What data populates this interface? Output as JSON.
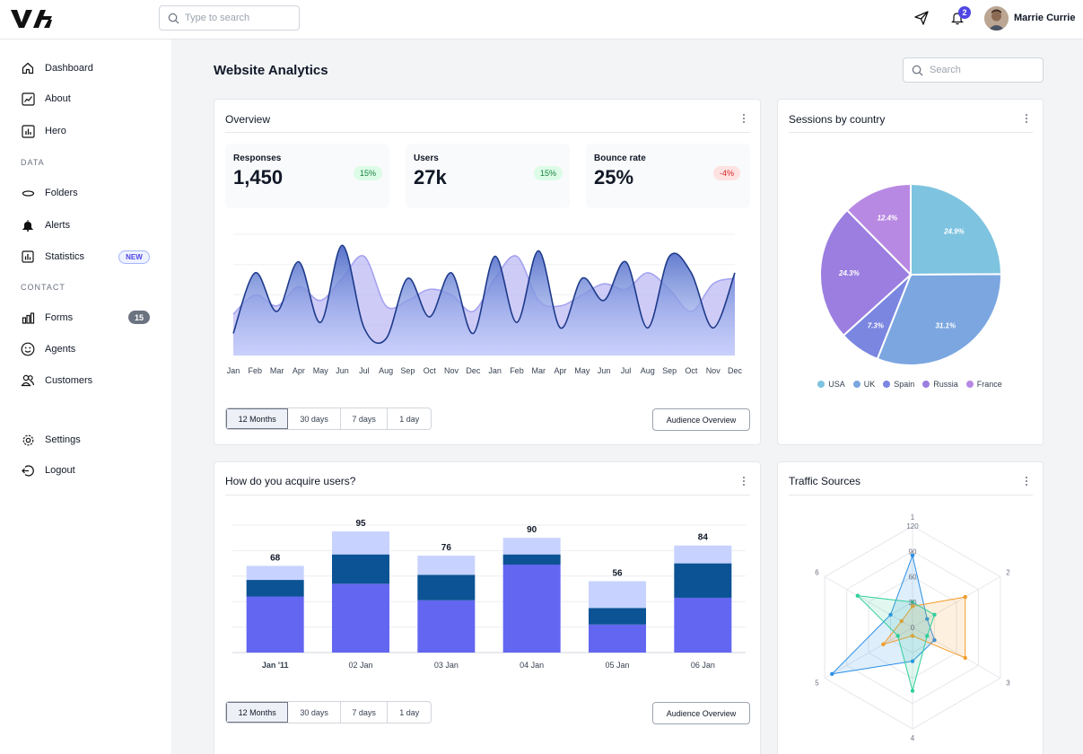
{
  "top_bar": {
    "search_placeholder": "Type to search",
    "notification_count": "2",
    "user_name": "Marrie Currie"
  },
  "sidebar": {
    "items": [
      {
        "label": "Dashboard",
        "icon": "home-icon"
      },
      {
        "label": "About",
        "icon": "trend-chart-icon"
      },
      {
        "label": "Hero",
        "icon": "bar-chart-icon"
      },
      {
        "label": "Folders",
        "icon": "folder-icon"
      },
      {
        "label": "Alerts",
        "icon": "bell-icon"
      },
      {
        "label": "Statistics",
        "icon": "stats-icon",
        "badge": "NEW"
      },
      {
        "label": "Forms",
        "icon": "forms-icon",
        "badge": "15"
      },
      {
        "label": "Agents",
        "icon": "smiley-icon"
      },
      {
        "label": "Customers",
        "icon": "users-icon"
      },
      {
        "label": "Settings",
        "icon": "gear-icon"
      },
      {
        "label": "Logout",
        "icon": "logout-icon"
      }
    ],
    "sections": {
      "data": "DATA",
      "contact": "CONTACT"
    }
  },
  "main": {
    "title": "Website Analytics",
    "search_placeholder": "Search"
  },
  "overview": {
    "title": "Overview",
    "stats": [
      {
        "label": "Responses",
        "value": "1,450",
        "change": "15%",
        "trend": "up"
      },
      {
        "label": "Users",
        "value": "27k",
        "change": "15%",
        "trend": "up"
      },
      {
        "label": "Bounce rate",
        "value": "25%",
        "change": "-4%",
        "trend": "down"
      }
    ],
    "ranges": [
      "12 Months",
      "30 days",
      "7 days",
      "1 day"
    ],
    "active_range": "12 Months",
    "button": "Audience Overview"
  },
  "sessions": {
    "title": "Sessions by country"
  },
  "acquire": {
    "title": "How do you acquire users?",
    "ranges": [
      "12 Months",
      "30 days",
      "7 days",
      "1 day"
    ],
    "active_range": "12 Months",
    "button": "Audience Overview"
  },
  "traffic": {
    "title": "Traffic Sources"
  },
  "colors": {
    "accent": "#4f46e5",
    "bar_primary": "#6366f1",
    "bar_secondary": "#0b5394",
    "bar_tertiary": "#c7d2fe",
    "area_light": "#c4b5fd",
    "area_dark": "#1e3a8a"
  },
  "chart_data": [
    {
      "type": "area",
      "x": [
        "Jan",
        "Feb",
        "Mar",
        "Apr",
        "May",
        "Jun",
        "Jul",
        "Aug",
        "Sep",
        "Oct",
        "Nov",
        "Dec",
        "Jan",
        "Feb",
        "Mar",
        "Apr",
        "May",
        "Jun",
        "Jul",
        "Aug",
        "Sep",
        "Oct",
        "Nov",
        "Dec"
      ],
      "series": [
        {
          "values": [
            15,
            22,
            18,
            25,
            20,
            28,
            36,
            18,
            20,
            24,
            22,
            16,
            28,
            36,
            20,
            18,
            22,
            26,
            24,
            30,
            24,
            16,
            26,
            28
          ],
          "color": "#a5a3f0"
        },
        {
          "values": [
            8,
            30,
            16,
            34,
            12,
            40,
            10,
            6,
            28,
            14,
            30,
            8,
            36,
            12,
            38,
            10,
            28,
            20,
            34,
            10,
            36,
            30,
            10,
            30
          ],
          "color": "#1e3a8a"
        }
      ],
      "ylim": [
        0,
        44
      ],
      "grid": true
    },
    {
      "type": "pie",
      "categories": [
        "USA",
        "UK",
        "Spain",
        "Russia",
        "France"
      ],
      "values": [
        24.9,
        31.1,
        7.3,
        24.3,
        12.4
      ],
      "labels": [
        "24.9%",
        "31.1%",
        "7.3%",
        "24.3%",
        "12.4%"
      ],
      "colors": [
        "#7ec3e0",
        "#7ba6e0",
        "#7a86e0",
        "#9b7ee0",
        "#b889e3"
      ],
      "legend": "bottom"
    },
    {
      "type": "bar",
      "stacked": true,
      "categories": [
        "Jan '11",
        "02 Jan",
        "03 Jan",
        "04 Jan",
        "05 Jan",
        "06 Jan"
      ],
      "series": [
        {
          "values": [
            44,
            54,
            41,
            69,
            22,
            43
          ],
          "color": "#6366f1"
        },
        {
          "values": [
            13,
            23,
            20,
            8,
            13,
            27
          ],
          "color": "#0b5394"
        },
        {
          "values": [
            11,
            18,
            15,
            13,
            21,
            14
          ],
          "color": "#c7d2fe"
        }
      ],
      "totals": [
        68,
        95,
        76,
        90,
        56,
        84
      ],
      "ylim": [
        0,
        100
      ],
      "grid": true
    },
    {
      "type": "radar",
      "axes": [
        "1",
        "2",
        "3",
        "4",
        "5",
        "6"
      ],
      "rings": [
        "0",
        "30",
        "60",
        "90",
        "120"
      ],
      "rmax": 120,
      "series": [
        {
          "values": [
            85,
            20,
            30,
            40,
            110,
            30
          ],
          "color": "#2b8fe6"
        },
        {
          "values": [
            25,
            72,
            72,
            10,
            40,
            15
          ],
          "color": "#f29c2b"
        },
        {
          "values": [
            30,
            30,
            20,
            75,
            20,
            75
          ],
          "color": "#2fcf9a"
        }
      ]
    }
  ]
}
